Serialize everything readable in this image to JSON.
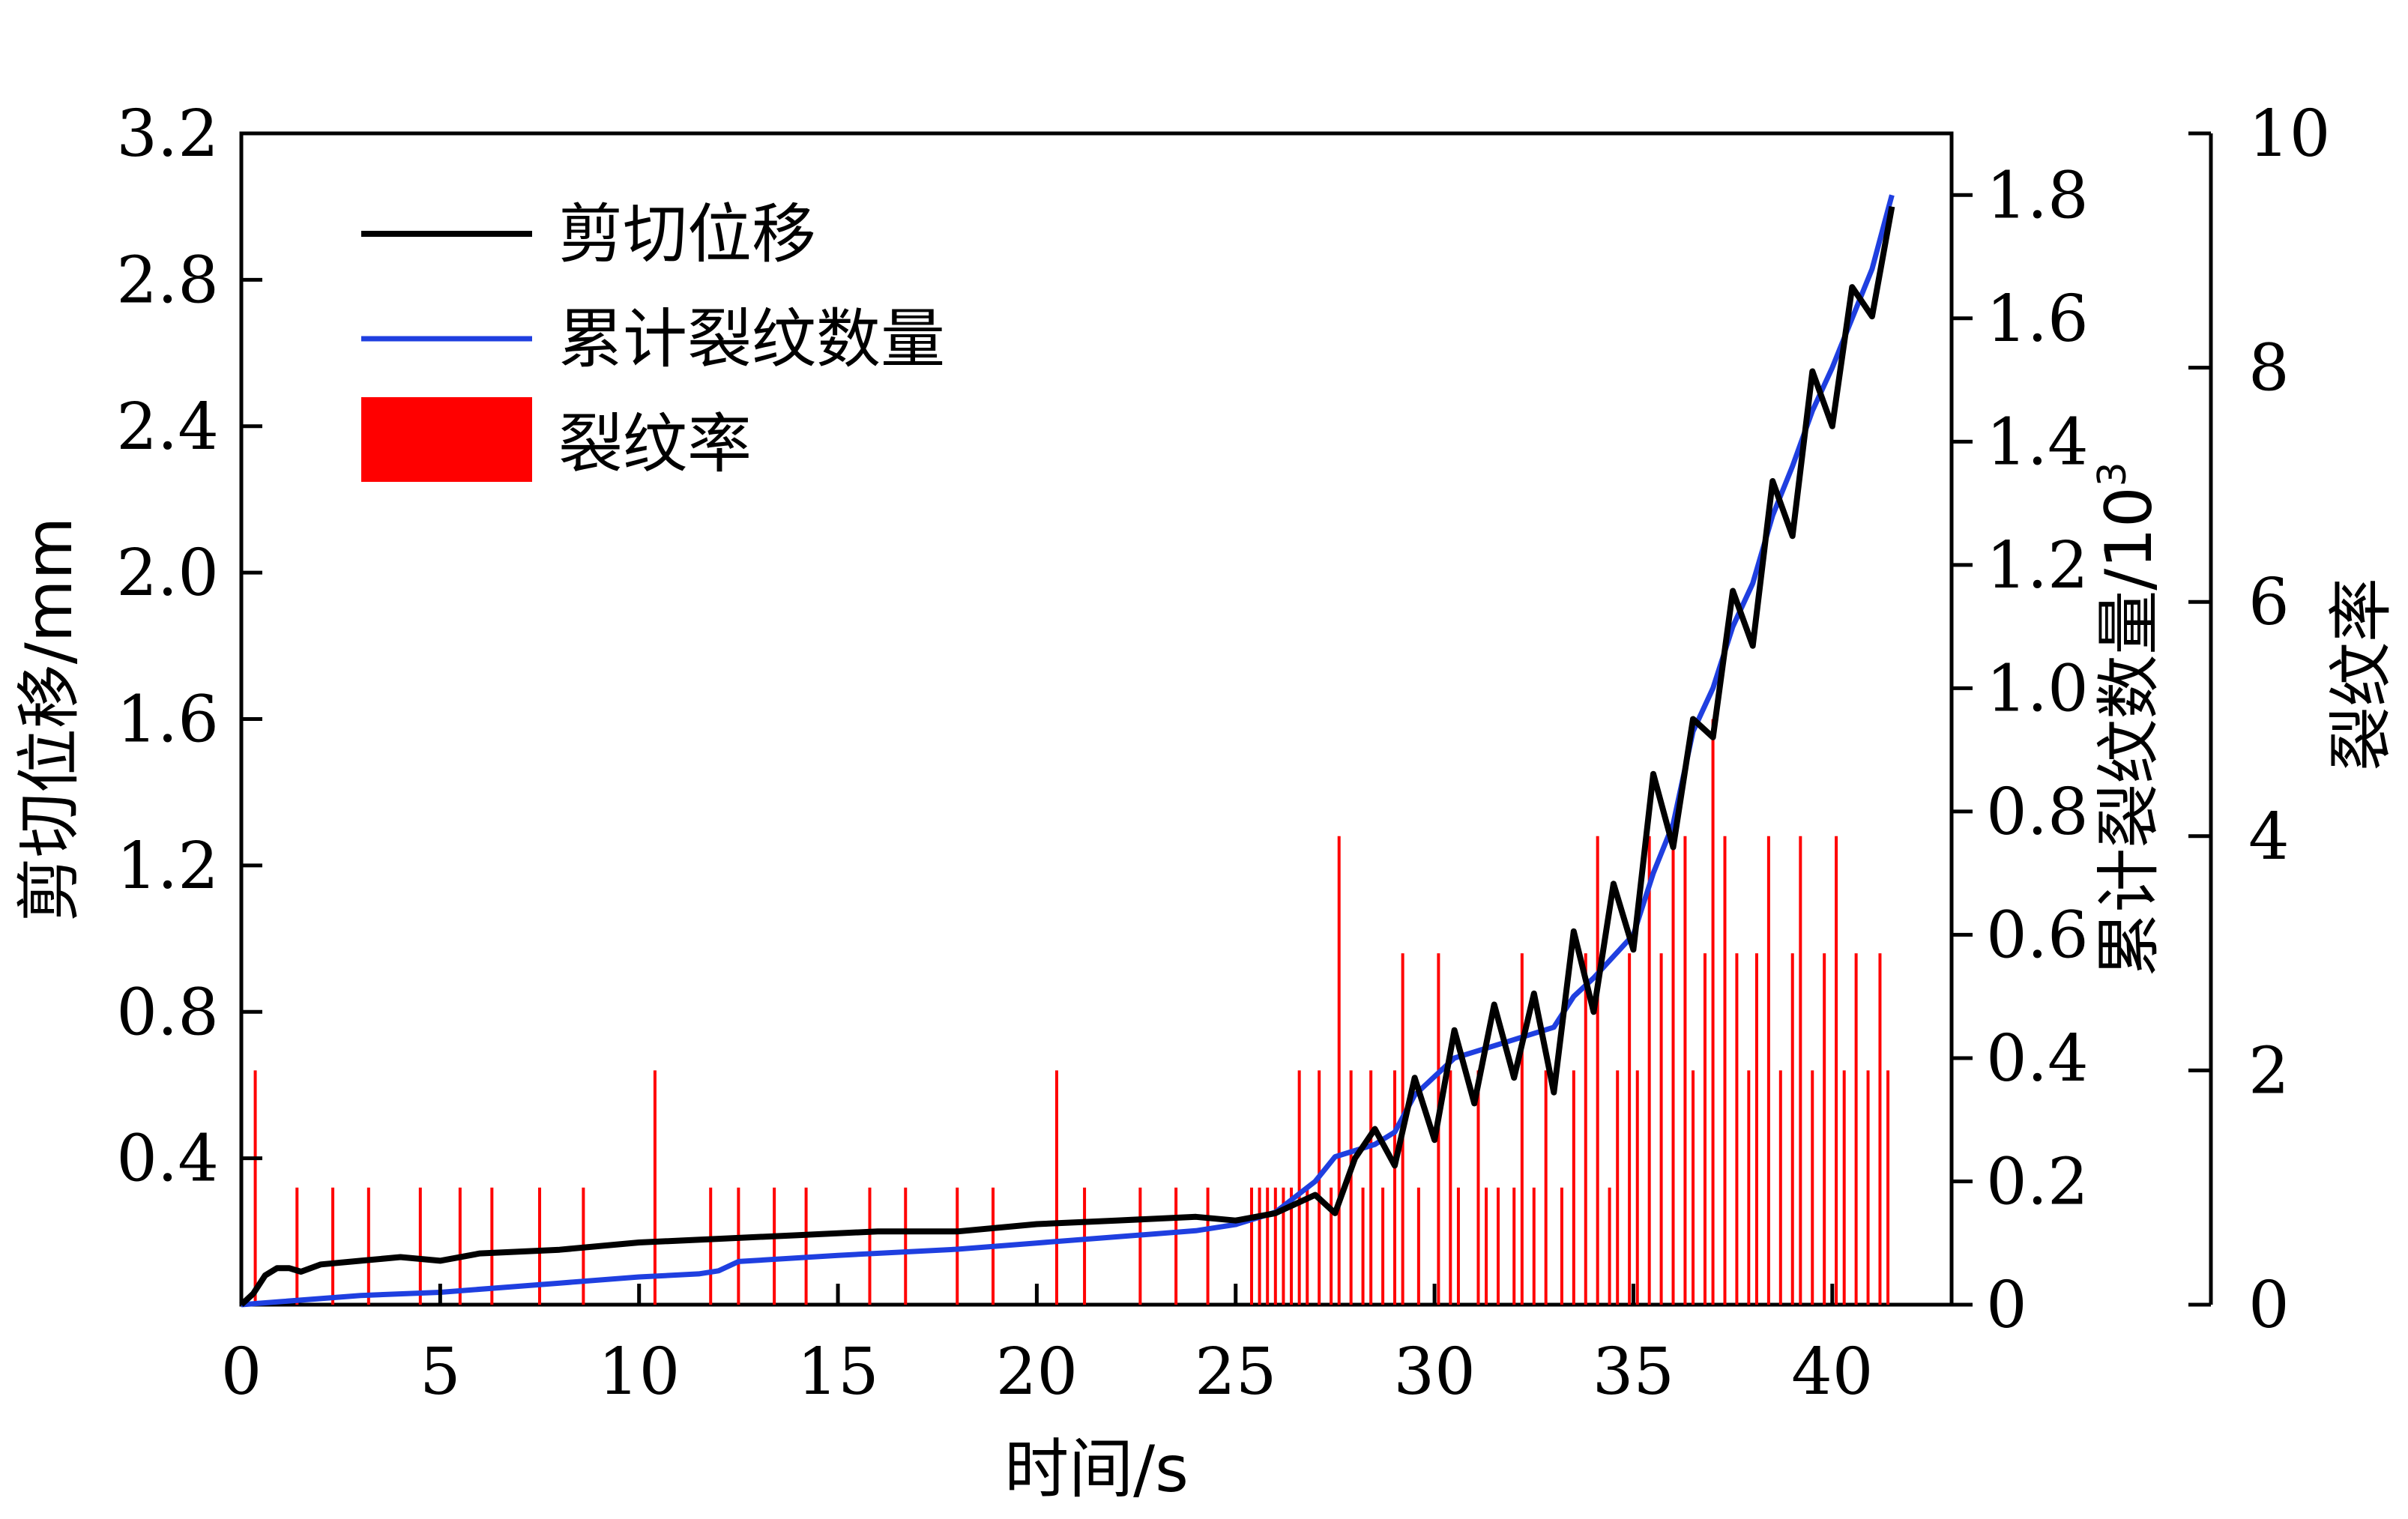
{
  "chart_data": {
    "type": "line",
    "title": "",
    "xlabel": "时间/s",
    "ylabel_left": "剪切位移/mm",
    "ylabel_right1": "累计裂纹数量/10",
    "ylabel_right1_sup": "3",
    "ylabel_right2": "裂纹率",
    "xlim": [
      0,
      43
    ],
    "ylim_left": [
      0,
      3.2
    ],
    "ylim_right1": [
      0,
      1.9
    ],
    "ylim_right2": [
      0,
      10
    ],
    "x_ticks": [
      "0",
      "5",
      "10",
      "15",
      "20",
      "25",
      "30",
      "35",
      "40"
    ],
    "y_left_ticks": [
      "0.4",
      "0.8",
      "1.2",
      "1.6",
      "2.0",
      "2.4",
      "2.8",
      "3.2"
    ],
    "y_right1_ticks": [
      "0",
      "0.2",
      "0.4",
      "0.6",
      "0.8",
      "1.0",
      "1.2",
      "1.4",
      "1.6",
      "1.8"
    ],
    "y_right2_ticks": [
      "0",
      "2",
      "4",
      "6",
      "8",
      "10"
    ],
    "grid": false,
    "legend_position": "top-left",
    "colors": {
      "displacement": "#000000",
      "cumulative": "#1f3fe0",
      "rate": "#ff0000"
    },
    "series": [
      {
        "name": "剪切位移",
        "axis": "left",
        "style": "line",
        "x": [
          0.0,
          0.3,
          0.6,
          0.9,
          1.2,
          1.5,
          2.0,
          3.0,
          4.0,
          5.0,
          6.0,
          8.0,
          10.0,
          12.0,
          14.0,
          16.0,
          18.0,
          20.0,
          22.0,
          24.0,
          25.0,
          26.0,
          27.0,
          27.5,
          28.0,
          28.5,
          29.0,
          29.5,
          30.0,
          30.5,
          31.0,
          31.5,
          32.0,
          32.5,
          33.0,
          33.5,
          34.0,
          34.5,
          35.0,
          35.5,
          36.0,
          36.5,
          37.0,
          37.5,
          38.0,
          38.5,
          39.0,
          39.5,
          40.0,
          40.5,
          41.0,
          41.5
        ],
        "values": [
          0.0,
          0.03,
          0.08,
          0.1,
          0.1,
          0.09,
          0.11,
          0.12,
          0.13,
          0.12,
          0.14,
          0.15,
          0.17,
          0.18,
          0.19,
          0.2,
          0.2,
          0.22,
          0.23,
          0.24,
          0.23,
          0.25,
          0.3,
          0.25,
          0.4,
          0.48,
          0.38,
          0.62,
          0.45,
          0.75,
          0.55,
          0.82,
          0.62,
          0.85,
          0.58,
          1.02,
          0.8,
          1.15,
          0.97,
          1.45,
          1.25,
          1.6,
          1.55,
          1.95,
          1.8,
          2.25,
          2.1,
          2.55,
          2.4,
          2.78,
          2.7,
          3.0
        ]
      },
      {
        "name": "累计裂纹数量",
        "axis": "right1",
        "style": "line",
        "x": [
          0.0,
          1.0,
          3.0,
          5.0,
          8.0,
          10.0,
          11.5,
          12.0,
          12.5,
          15.0,
          18.0,
          20.0,
          22.0,
          24.0,
          25.0,
          26.0,
          27.0,
          27.5,
          28.5,
          29.0,
          29.5,
          30.0,
          30.5,
          31.0,
          32.0,
          33.0,
          33.5,
          34.0,
          35.0,
          35.5,
          36.0,
          36.5,
          37.0,
          37.5,
          38.0,
          38.5,
          39.0,
          39.5,
          40.0,
          40.5,
          41.0,
          41.5
        ],
        "values": [
          0.0,
          0.005,
          0.015,
          0.02,
          0.035,
          0.045,
          0.05,
          0.055,
          0.07,
          0.08,
          0.09,
          0.1,
          0.11,
          0.12,
          0.13,
          0.15,
          0.2,
          0.24,
          0.26,
          0.28,
          0.34,
          0.37,
          0.4,
          0.41,
          0.43,
          0.45,
          0.5,
          0.53,
          0.6,
          0.7,
          0.78,
          0.93,
          1.0,
          1.1,
          1.17,
          1.28,
          1.36,
          1.45,
          1.52,
          1.6,
          1.68,
          1.8
        ]
      },
      {
        "name": "裂纹率",
        "axis": "right2",
        "style": "bar",
        "x": [
          0.35,
          1.4,
          2.3,
          3.2,
          4.5,
          5.5,
          6.3,
          7.5,
          8.6,
          10.4,
          11.8,
          12.5,
          13.4,
          14.2,
          15.8,
          16.7,
          18.0,
          18.9,
          20.5,
          21.2,
          22.6,
          23.5,
          24.3,
          25.4,
          25.6,
          25.8,
          26.0,
          26.2,
          26.4,
          26.6,
          26.8,
          27.1,
          27.4,
          27.6,
          27.9,
          28.2,
          28.4,
          28.7,
          29.0,
          29.2,
          29.6,
          30.1,
          30.4,
          30.6,
          31.1,
          31.3,
          31.6,
          32.0,
          32.2,
          32.5,
          32.8,
          33.2,
          33.5,
          33.8,
          34.1,
          34.4,
          34.6,
          34.9,
          35.1,
          35.4,
          35.7,
          36.0,
          36.3,
          36.5,
          36.8,
          37.0,
          37.3,
          37.6,
          37.9,
          38.1,
          38.4,
          38.7,
          39.0,
          39.2,
          39.5,
          39.8,
          40.1,
          40.3,
          40.6,
          40.9,
          41.2,
          41.4
        ],
        "values": [
          2,
          1,
          1,
          1,
          1,
          1,
          1,
          1,
          1,
          2,
          1,
          1,
          1,
          1,
          1,
          1,
          1,
          1,
          2,
          1,
          1,
          1,
          1,
          1,
          1,
          1,
          1,
          1,
          1,
          2,
          1,
          2,
          1,
          4,
          2,
          1,
          2,
          1,
          2,
          3,
          1,
          3,
          2,
          1,
          2,
          1,
          1,
          1,
          3,
          1,
          2,
          1,
          2,
          3,
          4,
          1,
          2,
          3,
          2,
          4,
          3,
          4,
          4,
          2,
          3,
          5,
          4,
          3,
          2,
          3,
          4,
          2,
          3,
          4,
          2,
          3,
          4,
          2,
          3,
          2,
          3,
          2
        ]
      }
    ]
  }
}
